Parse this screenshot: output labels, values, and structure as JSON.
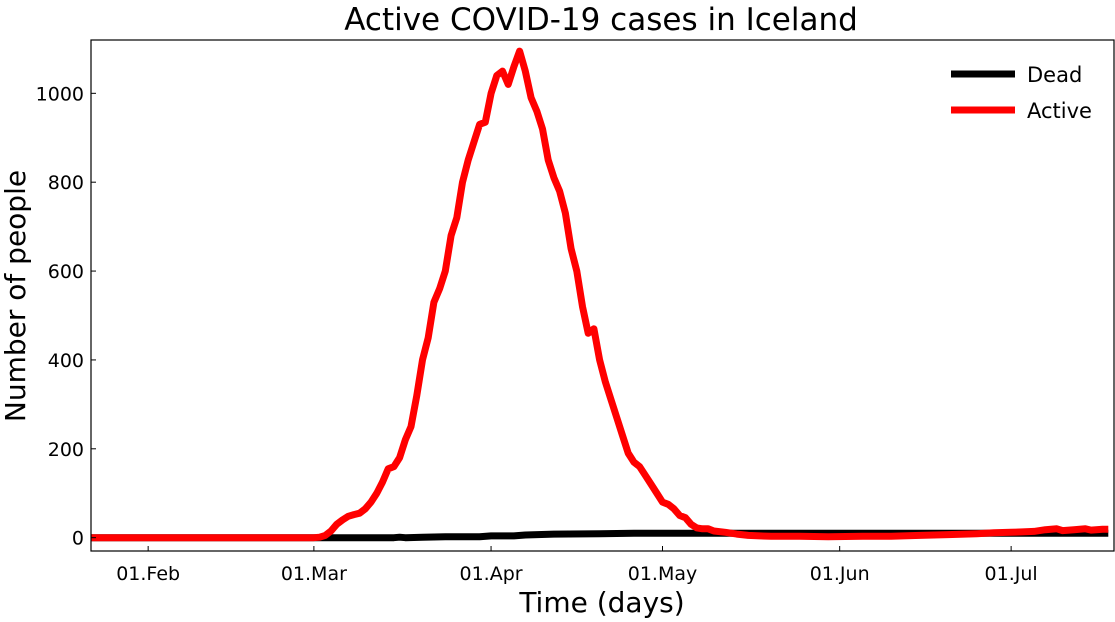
{
  "chart_data": {
    "type": "line",
    "title": "Active COVID-19 cases in Iceland",
    "xlabel": "Time (days)",
    "ylabel": "Number of people",
    "x_ticks": [
      {
        "date": "2020-02-01",
        "label": "01.Feb"
      },
      {
        "date": "2020-03-01",
        "label": "01.Mar"
      },
      {
        "date": "2020-04-01",
        "label": "01.Apr"
      },
      {
        "date": "2020-05-01",
        "label": "01.May"
      },
      {
        "date": "2020-06-01",
        "label": "01.Jun"
      },
      {
        "date": "2020-07-01",
        "label": "01.Jul"
      }
    ],
    "xlim": [
      "2020-01-22",
      "2020-07-19"
    ],
    "y_ticks": [
      0,
      200,
      400,
      600,
      800,
      1000
    ],
    "ylim": [
      -30,
      1120
    ],
    "grid": false,
    "legend_position": "top-right",
    "series": [
      {
        "name": "Dead",
        "color": "#000000",
        "points": [
          [
            "2020-01-22",
            0
          ],
          [
            "2020-03-15",
            0
          ],
          [
            "2020-03-16",
            1
          ],
          [
            "2020-03-17",
            0
          ],
          [
            "2020-03-20",
            1
          ],
          [
            "2020-03-24",
            2
          ],
          [
            "2020-03-30",
            2
          ],
          [
            "2020-04-01",
            4
          ],
          [
            "2020-04-05",
            4
          ],
          [
            "2020-04-07",
            6
          ],
          [
            "2020-04-12",
            8
          ],
          [
            "2020-04-20",
            9
          ],
          [
            "2020-04-26",
            10
          ],
          [
            "2020-05-20",
            10
          ],
          [
            "2020-06-20",
            10
          ],
          [
            "2020-07-18",
            10
          ]
        ]
      },
      {
        "name": "Active",
        "color": "#ff0000",
        "points": [
          [
            "2020-01-22",
            0
          ],
          [
            "2020-02-28",
            0
          ],
          [
            "2020-02-29",
            0
          ],
          [
            "2020-03-01",
            0
          ],
          [
            "2020-03-02",
            1
          ],
          [
            "2020-03-03",
            5
          ],
          [
            "2020-03-04",
            15
          ],
          [
            "2020-03-05",
            30
          ],
          [
            "2020-03-06",
            40
          ],
          [
            "2020-03-07",
            48
          ],
          [
            "2020-03-08",
            52
          ],
          [
            "2020-03-09",
            55
          ],
          [
            "2020-03-10",
            65
          ],
          [
            "2020-03-11",
            80
          ],
          [
            "2020-03-12",
            100
          ],
          [
            "2020-03-13",
            125
          ],
          [
            "2020-03-14",
            155
          ],
          [
            "2020-03-15",
            160
          ],
          [
            "2020-03-16",
            180
          ],
          [
            "2020-03-17",
            220
          ],
          [
            "2020-03-18",
            250
          ],
          [
            "2020-03-19",
            320
          ],
          [
            "2020-03-20",
            400
          ],
          [
            "2020-03-21",
            450
          ],
          [
            "2020-03-22",
            530
          ],
          [
            "2020-03-23",
            560
          ],
          [
            "2020-03-24",
            600
          ],
          [
            "2020-03-25",
            680
          ],
          [
            "2020-03-26",
            720
          ],
          [
            "2020-03-27",
            800
          ],
          [
            "2020-03-28",
            850
          ],
          [
            "2020-03-29",
            890
          ],
          [
            "2020-03-30",
            930
          ],
          [
            "2020-03-31",
            935
          ],
          [
            "2020-04-01",
            1000
          ],
          [
            "2020-04-02",
            1040
          ],
          [
            "2020-04-03",
            1050
          ],
          [
            "2020-04-04",
            1020
          ],
          [
            "2020-04-05",
            1060
          ],
          [
            "2020-04-06",
            1095
          ],
          [
            "2020-04-07",
            1050
          ],
          [
            "2020-04-08",
            990
          ],
          [
            "2020-04-09",
            960
          ],
          [
            "2020-04-10",
            920
          ],
          [
            "2020-04-11",
            850
          ],
          [
            "2020-04-12",
            810
          ],
          [
            "2020-04-13",
            780
          ],
          [
            "2020-04-14",
            730
          ],
          [
            "2020-04-15",
            650
          ],
          [
            "2020-04-16",
            600
          ],
          [
            "2020-04-17",
            520
          ],
          [
            "2020-04-18",
            460
          ],
          [
            "2020-04-19",
            470
          ],
          [
            "2020-04-20",
            400
          ],
          [
            "2020-04-21",
            350
          ],
          [
            "2020-04-22",
            310
          ],
          [
            "2020-04-23",
            270
          ],
          [
            "2020-04-24",
            230
          ],
          [
            "2020-04-25",
            190
          ],
          [
            "2020-04-26",
            170
          ],
          [
            "2020-04-27",
            160
          ],
          [
            "2020-04-28",
            140
          ],
          [
            "2020-04-29",
            120
          ],
          [
            "2020-04-30",
            100
          ],
          [
            "2020-05-01",
            80
          ],
          [
            "2020-05-02",
            75
          ],
          [
            "2020-05-03",
            65
          ],
          [
            "2020-05-04",
            50
          ],
          [
            "2020-05-05",
            45
          ],
          [
            "2020-05-06",
            30
          ],
          [
            "2020-05-07",
            22
          ],
          [
            "2020-05-08",
            20
          ],
          [
            "2020-05-09",
            20
          ],
          [
            "2020-05-10",
            15
          ],
          [
            "2020-05-12",
            12
          ],
          [
            "2020-05-14",
            8
          ],
          [
            "2020-05-16",
            5
          ],
          [
            "2020-05-18",
            4
          ],
          [
            "2020-05-20",
            3
          ],
          [
            "2020-05-25",
            3
          ],
          [
            "2020-05-30",
            2
          ],
          [
            "2020-06-05",
            3
          ],
          [
            "2020-06-10",
            3
          ],
          [
            "2020-06-15",
            5
          ],
          [
            "2020-06-20",
            7
          ],
          [
            "2020-06-25",
            9
          ],
          [
            "2020-06-28",
            11
          ],
          [
            "2020-07-01",
            12
          ],
          [
            "2020-07-03",
            13
          ],
          [
            "2020-07-05",
            14
          ],
          [
            "2020-07-07",
            18
          ],
          [
            "2020-07-09",
            20
          ],
          [
            "2020-07-10",
            16
          ],
          [
            "2020-07-12",
            18
          ],
          [
            "2020-07-14",
            20
          ],
          [
            "2020-07-15",
            17
          ],
          [
            "2020-07-17",
            19
          ],
          [
            "2020-07-18",
            19
          ]
        ]
      }
    ]
  }
}
